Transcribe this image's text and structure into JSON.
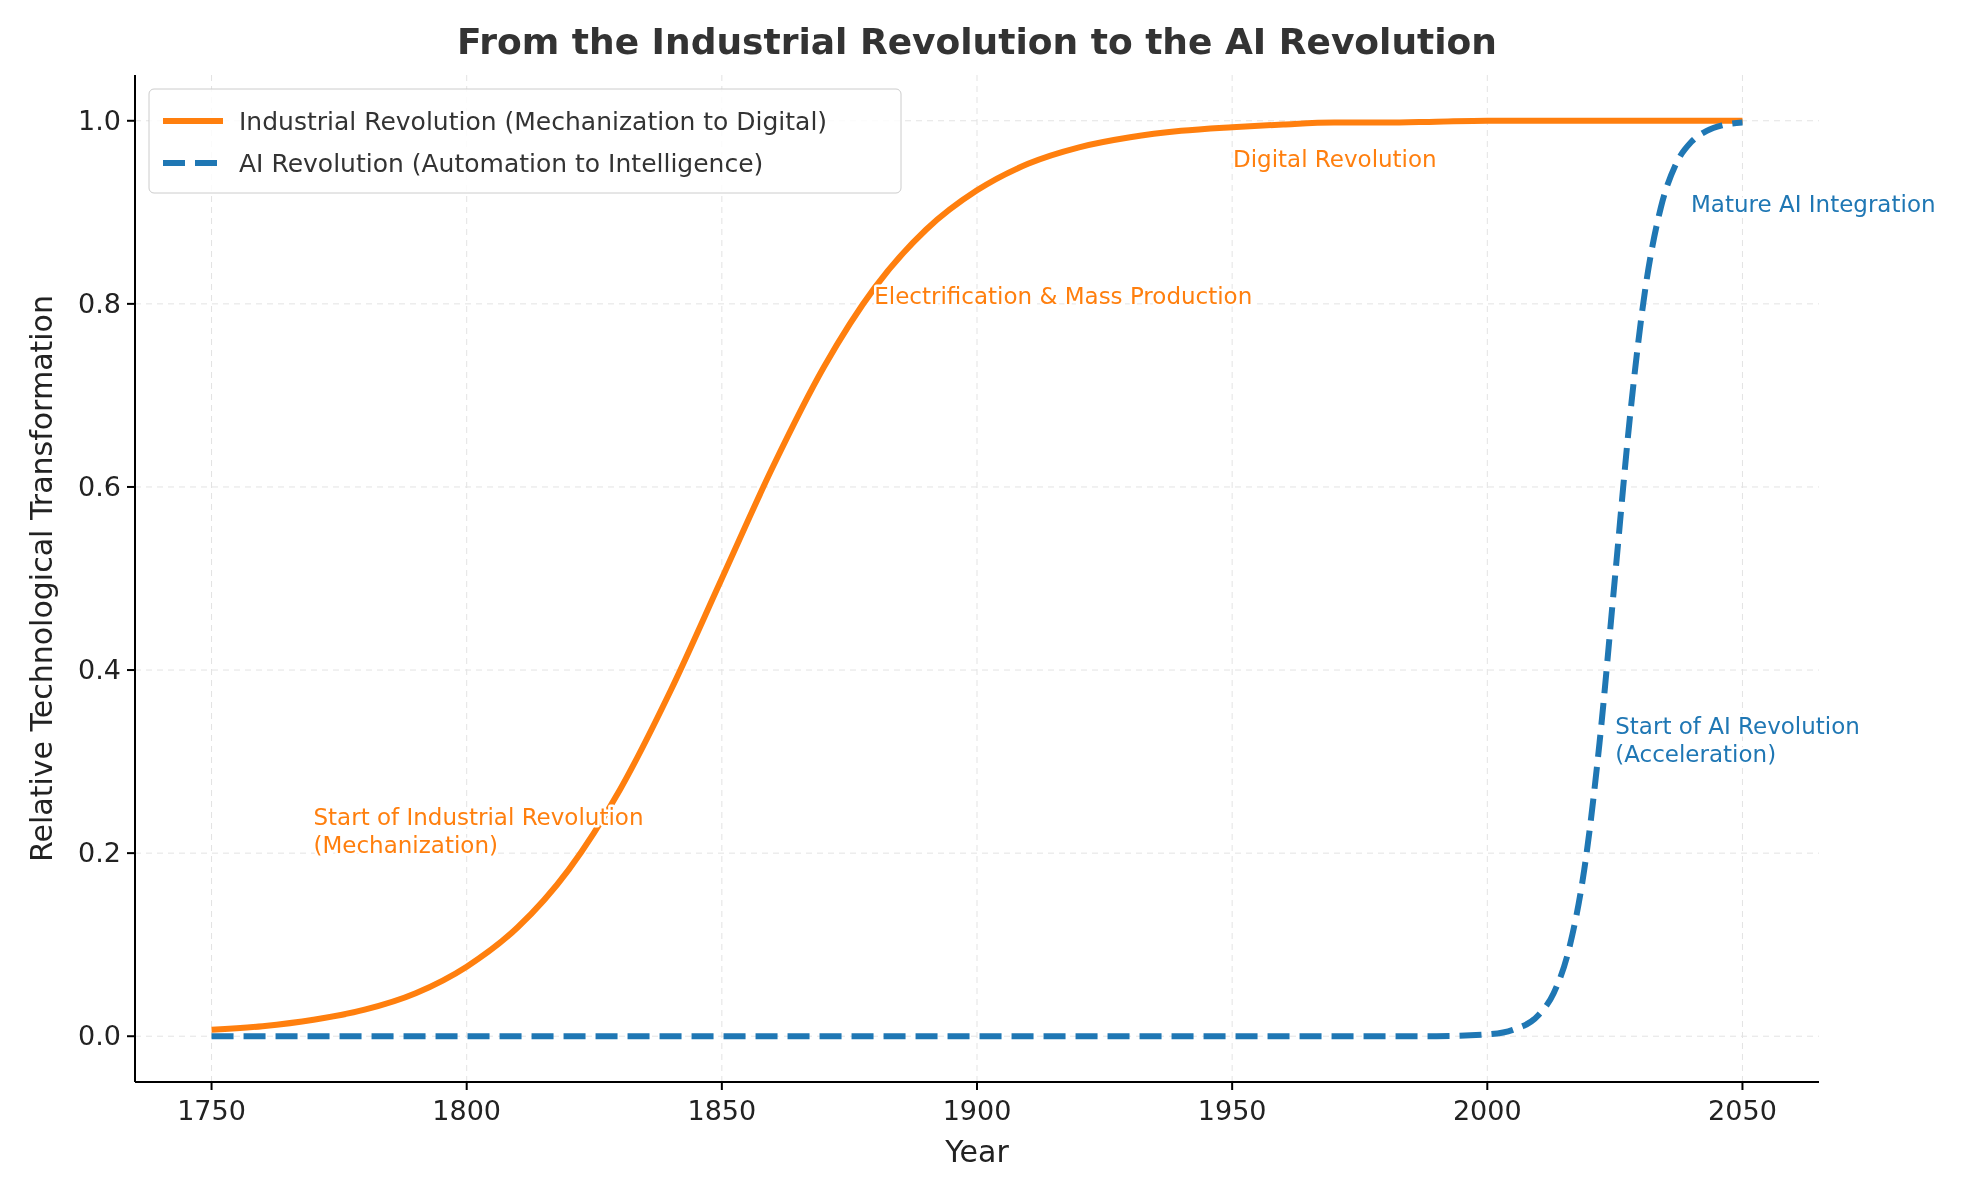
{
  "chart_data": {
    "type": "line",
    "title": "From the Industrial Revolution to the AI Revolution",
    "xlabel": "Year",
    "ylabel": "Relative Technological Transformation",
    "xlim": [
      1735,
      2065
    ],
    "xticks": [
      1750,
      1800,
      1850,
      1900,
      1950,
      2000,
      2050
    ],
    "ylim": [
      -0.05,
      1.05
    ],
    "yticks": [
      {
        "value": 0,
        "label": "0.0"
      },
      {
        "value": 0.2,
        "label": "0.2"
      },
      {
        "value": 0.4,
        "label": "0.4"
      },
      {
        "value": 0.6,
        "label": "0.6"
      },
      {
        "value": 0.8,
        "label": "0.8"
      },
      {
        "value": 1,
        "label": "1.0"
      }
    ],
    "grid": true,
    "legend": "top left",
    "series": [
      {
        "name": "Industrial Revolution (Mechanization to Digital)",
        "color": "#ff7f0e",
        "line_style": "solid",
        "x": [
          1750,
          1760,
          1770,
          1780,
          1790,
          1800,
          1810,
          1820,
          1830,
          1840,
          1850,
          1860,
          1870,
          1880,
          1890,
          1900,
          1910,
          1920,
          1930,
          1940,
          1950,
          1960,
          1970,
          1980,
          1990,
          2000,
          2010,
          2020,
          2030,
          2040,
          2050
        ],
        "values": [
          0.007,
          0.011,
          0.018,
          0.029,
          0.047,
          0.076,
          0.119,
          0.182,
          0.269,
          0.378,
          0.5,
          0.622,
          0.731,
          0.818,
          0.881,
          0.924,
          0.953,
          0.971,
          0.982,
          0.989,
          0.993,
          0.996,
          0.998,
          0.998,
          0.999,
          1.0,
          1.0,
          1.0,
          1.0,
          1.0,
          1.0
        ]
      },
      {
        "name": "AI Revolution (Automation to Intelligence)",
        "color": "#1f77b4",
        "line_style": "dashed",
        "x": [
          1750,
          1800,
          1850,
          1900,
          1950,
          1980,
          1990,
          2000,
          2005,
          2010,
          2013,
          2016,
          2019,
          2022,
          2025,
          2028,
          2031,
          2034,
          2037,
          2040,
          2043,
          2046,
          2050
        ],
        "values": [
          0,
          0,
          0,
          0,
          0,
          0,
          0,
          0.002,
          0.007,
          0.023,
          0.047,
          0.095,
          0.182,
          0.321,
          0.5,
          0.679,
          0.818,
          0.905,
          0.953,
          0.977,
          0.989,
          0.995,
          0.998
        ]
      }
    ],
    "annotations": [
      "Start of Industrial Revolution\n(Mechanization)",
      "Electrification & Mass Production",
      "Digital Revolution",
      "Start of AI Revolution\n(Acceleration)",
      "Mature AI Integration"
    ]
  }
}
